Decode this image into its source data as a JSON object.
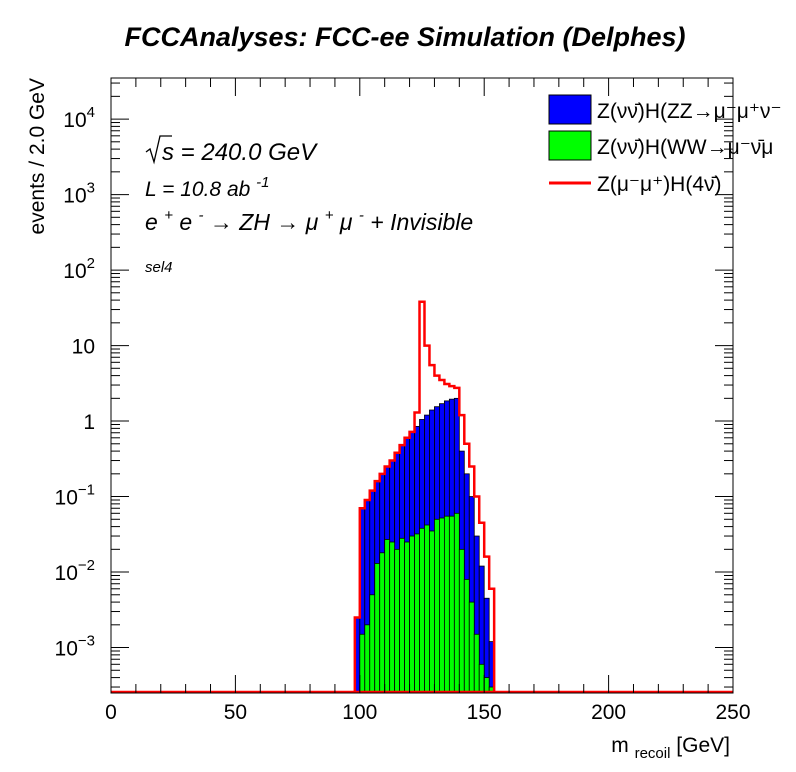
{
  "chart_data": {
    "type": "step-histogram",
    "title": "FCCAnalyses: FCC-ee Simulation (Delphes)",
    "xlabel": "m",
    "xlabel_sub": "recoil",
    "xlabel_unit": " [GeV]",
    "ylabel": "events / 2.0 GeV",
    "xlim": [
      0,
      250
    ],
    "ylim": [
      0.00025,
      35000
    ],
    "log_y": true,
    "bin_width": 2,
    "x_ticks": [
      {
        "v": 0,
        "label": "0"
      },
      {
        "v": 50,
        "label": "50"
      },
      {
        "v": 100,
        "label": "100"
      },
      {
        "v": 150,
        "label": "150"
      },
      {
        "v": 200,
        "label": "200"
      },
      {
        "v": 250,
        "label": "250"
      }
    ],
    "y_ticks": [
      {
        "v": 0.001,
        "base": "10",
        "exp": "−3"
      },
      {
        "v": 0.01,
        "base": "10",
        "exp": "−2"
      },
      {
        "v": 0.1,
        "base": "10",
        "exp": "−1"
      },
      {
        "v": 1,
        "base": "1",
        "exp": ""
      },
      {
        "v": 10,
        "base": "10",
        "exp": ""
      },
      {
        "v": 100,
        "base": "10",
        "exp": "2"
      },
      {
        "v": 1000,
        "base": "10",
        "exp": "3"
      },
      {
        "v": 10000,
        "base": "10",
        "exp": "4"
      }
    ],
    "annotations": {
      "sqrt_s": "s = 240.0 GeV",
      "lumi_base": "L = 10.8 ab",
      "lumi_exp": "-1",
      "process_p1": "e",
      "process_p2": "e",
      "process_p3": " → ZH → μ",
      "process_p4": "μ",
      "process_p5": " + Invisible",
      "sup_plus": "+",
      "sup_minus": "-",
      "selection": "sel4"
    },
    "series": [
      {
        "name": "Z(νν̄)H(ZZ→μ⁻μ⁺ν⁻",
        "style": "fill",
        "color": "#0000ff",
        "bins": [
          [
            98,
            0.0025
          ],
          [
            100,
            0.07
          ],
          [
            102,
            0.09
          ],
          [
            104,
            0.12
          ],
          [
            106,
            0.16
          ],
          [
            108,
            0.2
          ],
          [
            110,
            0.25
          ],
          [
            112,
            0.3
          ],
          [
            114,
            0.38
          ],
          [
            116,
            0.48
          ],
          [
            118,
            0.6
          ],
          [
            120,
            0.72
          ],
          [
            122,
            0.85
          ],
          [
            124,
            1.05
          ],
          [
            126,
            1.2
          ],
          [
            128,
            1.4
          ],
          [
            130,
            1.55
          ],
          [
            132,
            1.7
          ],
          [
            134,
            1.85
          ],
          [
            136,
            1.95
          ],
          [
            138,
            2.0
          ],
          [
            140,
            0.4
          ],
          [
            142,
            0.2
          ],
          [
            144,
            0.1
          ],
          [
            146,
            0.03
          ],
          [
            148,
            0.012
          ],
          [
            150,
            0.0045
          ],
          [
            152,
            0.0012
          ]
        ]
      },
      {
        "name": "Z(νν̄)H(WW→μ⁻ν̄μ",
        "style": "fill",
        "color": "#00ff00",
        "bins": [
          [
            100,
            0.0015
          ],
          [
            102,
            0.002
          ],
          [
            104,
            0.005
          ],
          [
            106,
            0.013
          ],
          [
            108,
            0.018
          ],
          [
            110,
            0.027
          ],
          [
            112,
            0.025
          ],
          [
            114,
            0.02
          ],
          [
            116,
            0.028
          ],
          [
            118,
            0.025
          ],
          [
            120,
            0.03
          ],
          [
            122,
            0.032
          ],
          [
            124,
            0.038
          ],
          [
            126,
            0.042
          ],
          [
            128,
            0.035
          ],
          [
            130,
            0.05
          ],
          [
            132,
            0.052
          ],
          [
            134,
            0.055
          ],
          [
            136,
            0.055
          ],
          [
            138,
            0.06
          ],
          [
            140,
            0.02
          ],
          [
            142,
            0.008
          ],
          [
            144,
            0.004
          ],
          [
            146,
            0.0015
          ],
          [
            148,
            0.0006
          ],
          [
            150,
            0.0004
          ],
          [
            152,
            0.0003
          ]
        ]
      },
      {
        "name": "Z(μ⁻μ⁺)H(4ν̄)",
        "style": "line",
        "color": "#ff0000",
        "bins": [
          [
            98,
            0.0025
          ],
          [
            100,
            0.07
          ],
          [
            102,
            0.09
          ],
          [
            104,
            0.12
          ],
          [
            106,
            0.16
          ],
          [
            108,
            0.2
          ],
          [
            110,
            0.25
          ],
          [
            112,
            0.3
          ],
          [
            114,
            0.38
          ],
          [
            116,
            0.48
          ],
          [
            118,
            0.6
          ],
          [
            120,
            0.72
          ],
          [
            122,
            1.3
          ],
          [
            124,
            38
          ],
          [
            126,
            10
          ],
          [
            128,
            5.5
          ],
          [
            130,
            4.0
          ],
          [
            132,
            3.5
          ],
          [
            134,
            3.1
          ],
          [
            136,
            2.9
          ],
          [
            138,
            2.75
          ],
          [
            140,
            1.2
          ],
          [
            142,
            0.5
          ],
          [
            144,
            0.25
          ],
          [
            146,
            0.1
          ],
          [
            148,
            0.045
          ],
          [
            150,
            0.016
          ],
          [
            152,
            0.006
          ]
        ]
      }
    ],
    "legend": {
      "placement": "top-right"
    }
  }
}
